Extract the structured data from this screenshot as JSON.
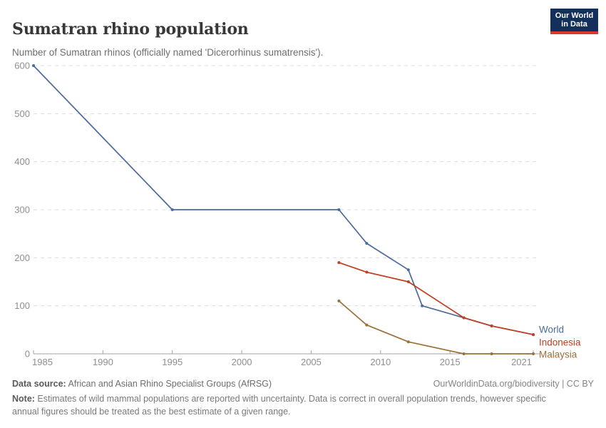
{
  "header": {
    "title": "Sumatran rhino population",
    "subtitle": "Number of Sumatran rhinos (officially named 'Dicerorhinus sumatrensis').",
    "logo": {
      "line1": "Our World",
      "line2": "in Data"
    }
  },
  "chart_data": {
    "type": "line",
    "title": "Sumatran rhino population",
    "xlabel": "",
    "ylabel": "",
    "xlim": [
      1985,
      2021
    ],
    "ylim": [
      0,
      600
    ],
    "x_ticks": [
      1985,
      1990,
      1995,
      2000,
      2005,
      2010,
      2015,
      2021
    ],
    "y_ticks": [
      0,
      100,
      200,
      300,
      400,
      500,
      600
    ],
    "grid": "horizontal-dashed",
    "legend_position": "line-end-labels-right",
    "series": [
      {
        "name": "World",
        "color": "#4C6A9C",
        "points": [
          [
            1985,
            600
          ],
          [
            1995,
            300
          ],
          [
            2007,
            300
          ],
          [
            2009,
            230
          ],
          [
            2012,
            175
          ],
          [
            2013,
            100
          ],
          [
            2016,
            75
          ],
          [
            2018,
            58
          ],
          [
            2021,
            40
          ]
        ]
      },
      {
        "name": "Indonesia",
        "color": "#C03E21",
        "points": [
          [
            2007,
            190
          ],
          [
            2009,
            170
          ],
          [
            2012,
            150
          ],
          [
            2016,
            75
          ],
          [
            2018,
            58
          ],
          [
            2021,
            40
          ]
        ]
      },
      {
        "name": "Malaysia",
        "color": "#9C6F38",
        "points": [
          [
            2007,
            110
          ],
          [
            2009,
            60
          ],
          [
            2012,
            25
          ],
          [
            2016,
            0
          ],
          [
            2018,
            0
          ],
          [
            2021,
            0
          ]
        ]
      }
    ]
  },
  "footer": {
    "source_label": "Data source:",
    "source_text": " African and Asian Rhino Specialist Groups (AfRSG)",
    "credit": "OurWorldinData.org/biodiversity | CC BY",
    "note_label": "Note:",
    "note_text": " Estimates of wild mammal populations are reported with uncertainty. Data is correct in overall population trends, however specific annual figures should be treated as the best estimate of a given range."
  },
  "colors": {
    "title": "#383838",
    "subtitle": "#6e6e6e",
    "tick_label": "#8f8f8f",
    "gridline": "#dcdcdc",
    "axis_line": "#a3a3a3",
    "logo_bg": "#12305B",
    "logo_accent": "#D63B2F",
    "background": "#ffffff"
  }
}
